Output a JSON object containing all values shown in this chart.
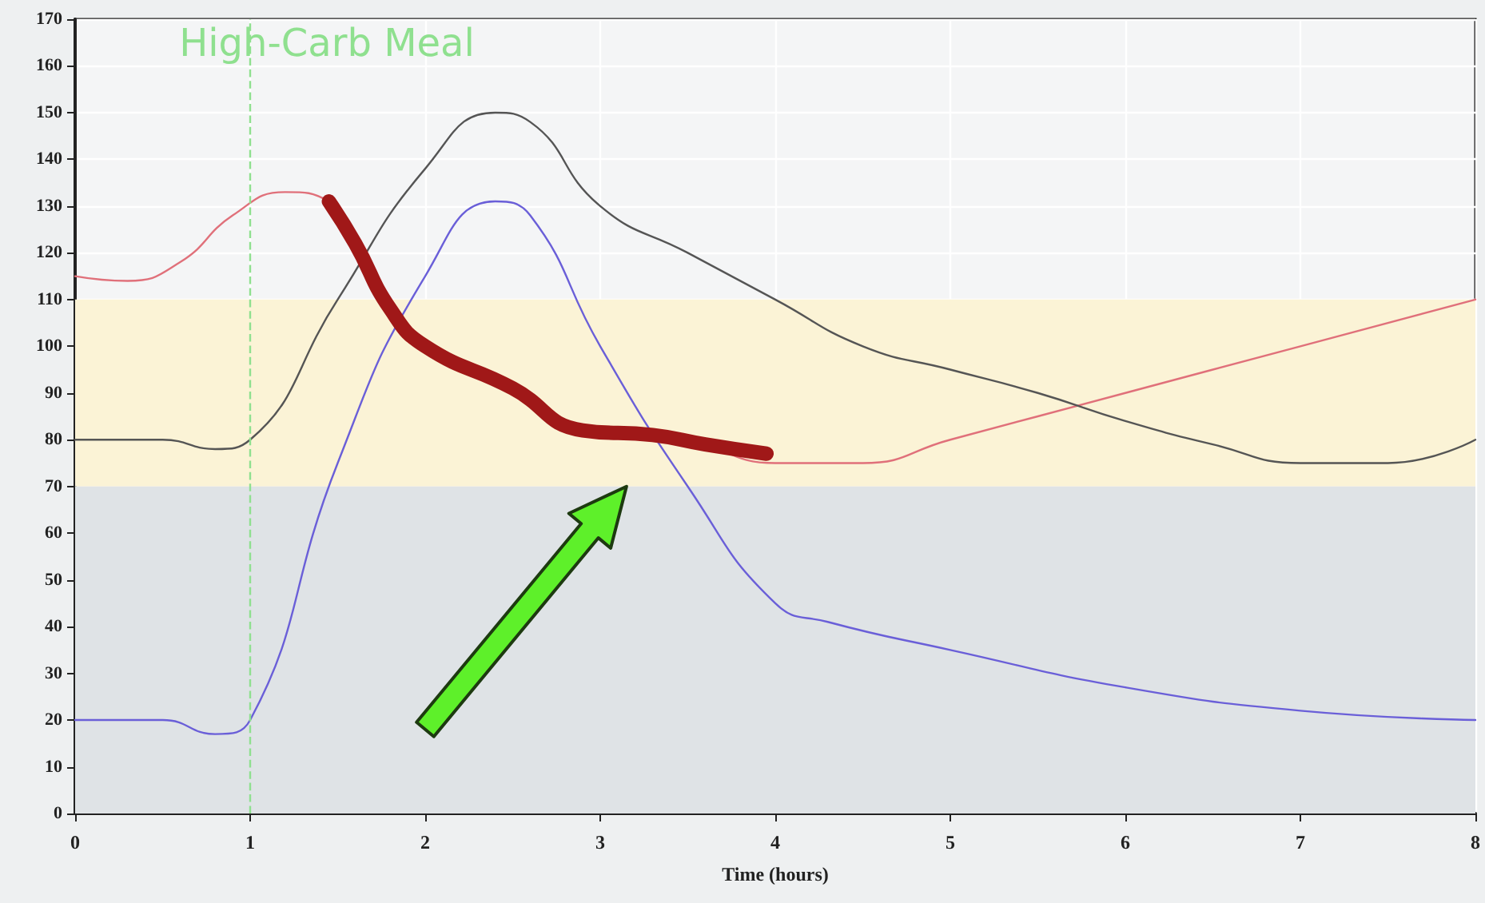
{
  "chart_data": {
    "type": "line",
    "xlabel": "Time (hours)",
    "xlim": [
      0,
      8
    ],
    "xticks": [
      0,
      1,
      2,
      3,
      4,
      5,
      6,
      7,
      8
    ],
    "ylim": [
      0,
      170
    ],
    "yticks": [
      0,
      10,
      20,
      30,
      40,
      50,
      60,
      70,
      80,
      90,
      100,
      110,
      120,
      130,
      140,
      150,
      160,
      170
    ],
    "grid": true,
    "marker": "none",
    "line_style": "solid",
    "series": [
      {
        "color": "#e0707a",
        "x": [
          0,
          0.3,
          0.6,
          0.9,
          1.2,
          1.45,
          1.6,
          1.8,
          2.0,
          2.5,
          3.0,
          3.5,
          4.0,
          4.5,
          5.0,
          6.0,
          7.0,
          8.0
        ],
        "values": [
          115,
          114,
          118,
          128,
          133,
          131,
          122,
          108,
          100,
          90,
          82,
          80,
          75,
          75,
          80,
          90,
          100,
          110
        ]
      },
      {
        "color": "#555555",
        "x": [
          0,
          0.5,
          0.8,
          1.0,
          1.5,
          2.0,
          2.4,
          2.6,
          3.0,
          3.5,
          4.0,
          4.5,
          5.0,
          5.5,
          6.0,
          6.5,
          7.0,
          7.5,
          8.0
        ],
        "values": [
          80,
          80,
          78,
          80,
          110,
          138,
          150,
          148,
          130,
          120,
          110,
          100,
          95,
          90,
          84,
          79,
          75,
          75,
          80
        ]
      },
      {
        "color": "#6a5fd8",
        "x": [
          0,
          0.5,
          0.8,
          1.0,
          1.5,
          2.0,
          2.4,
          2.6,
          3.0,
          3.5,
          4.0,
          4.3,
          5.0,
          6.0,
          7.0,
          8.0
        ],
        "values": [
          20,
          20,
          17,
          20,
          75,
          115,
          131,
          128,
          100,
          70,
          45,
          41,
          35,
          27,
          22,
          20
        ]
      },
      {
        "color": "#a01818",
        "type": "line",
        "x": [
          1.45,
          1.6,
          1.8,
          2.0,
          2.5,
          2.9,
          3.3,
          3.6,
          3.95
        ],
        "values": [
          131,
          122,
          108,
          100,
          91,
          82,
          81,
          79,
          77
        ]
      }
    ],
    "bands": [
      {
        "axis": "y",
        "from": 70,
        "to": 110,
        "color": "#fbf3d6"
      },
      {
        "axis": "y",
        "from": 0,
        "to": 70,
        "color": "#dfe3e6"
      }
    ],
    "ref_lines": [
      {
        "axis": "x",
        "value": 1,
        "label": "High-Carb Meal",
        "color": "#8fe08f",
        "line_style": "dashed"
      }
    ]
  }
}
